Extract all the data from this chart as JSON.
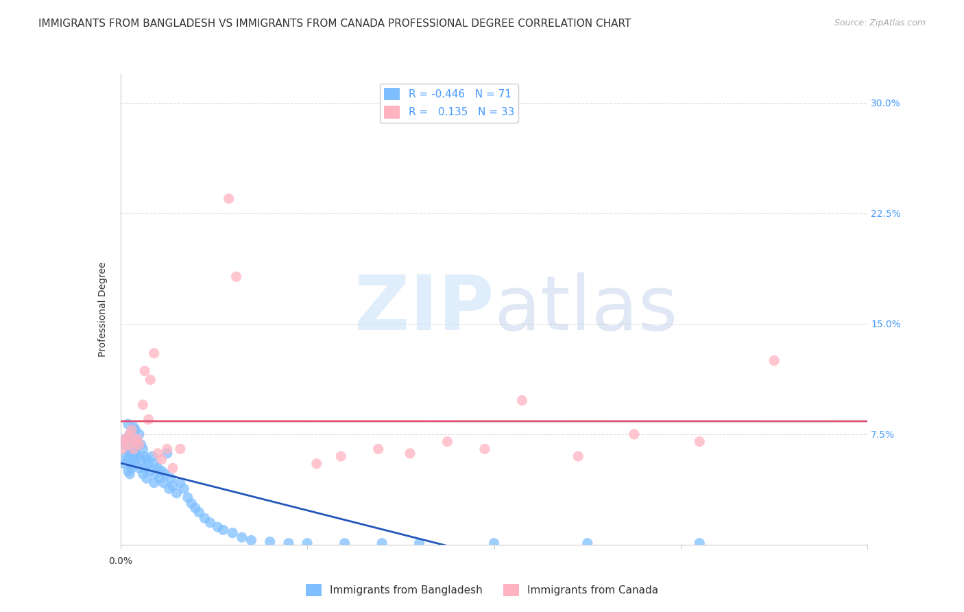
{
  "title": "IMMIGRANTS FROM BANGLADESH VS IMMIGRANTS FROM CANADA PROFESSIONAL DEGREE CORRELATION CHART",
  "source": "Source: ZipAtlas.com",
  "ylabel": "Professional Degree",
  "legend_labels": [
    "Immigrants from Bangladesh",
    "Immigrants from Canada"
  ],
  "r_bangladesh": -0.446,
  "n_bangladesh": 71,
  "r_canada": 0.135,
  "n_canada": 33,
  "xlim": [
    0.0,
    0.4
  ],
  "ylim": [
    0.0,
    0.32
  ],
  "yticks": [
    0.0,
    0.075,
    0.15,
    0.225,
    0.3
  ],
  "ytick_labels": [
    "",
    "7.5%",
    "15.0%",
    "22.5%",
    "30.0%"
  ],
  "color_bangladesh": "#7fbfff",
  "color_canada": "#ffb3c1",
  "line_color_bangladesh": "#2255bb",
  "line_color_canada": "#e05070",
  "watermark_zip": "ZIP",
  "watermark_atlas": "atlas",
  "bangladesh_x": [
    0.001,
    0.002,
    0.003,
    0.003,
    0.004,
    0.004,
    0.004,
    0.005,
    0.005,
    0.005,
    0.005,
    0.006,
    0.006,
    0.006,
    0.007,
    0.007,
    0.007,
    0.007,
    0.008,
    0.008,
    0.008,
    0.009,
    0.009,
    0.01,
    0.01,
    0.011,
    0.011,
    0.012,
    0.012,
    0.013,
    0.013,
    0.014,
    0.014,
    0.015,
    0.016,
    0.017,
    0.018,
    0.018,
    0.019,
    0.02,
    0.021,
    0.022,
    0.023,
    0.024,
    0.025,
    0.026,
    0.027,
    0.028,
    0.03,
    0.032,
    0.034,
    0.036,
    0.038,
    0.04,
    0.042,
    0.045,
    0.048,
    0.052,
    0.055,
    0.06,
    0.065,
    0.07,
    0.08,
    0.09,
    0.1,
    0.12,
    0.14,
    0.16,
    0.2,
    0.25,
    0.31
  ],
  "bangladesh_y": [
    0.068,
    0.055,
    0.072,
    0.06,
    0.082,
    0.05,
    0.058,
    0.075,
    0.065,
    0.062,
    0.048,
    0.07,
    0.055,
    0.052,
    0.08,
    0.065,
    0.062,
    0.058,
    0.078,
    0.063,
    0.055,
    0.07,
    0.06,
    0.075,
    0.052,
    0.068,
    0.058,
    0.065,
    0.048,
    0.06,
    0.052,
    0.058,
    0.045,
    0.055,
    0.05,
    0.06,
    0.042,
    0.055,
    0.048,
    0.052,
    0.045,
    0.05,
    0.042,
    0.048,
    0.062,
    0.038,
    0.045,
    0.04,
    0.035,
    0.042,
    0.038,
    0.032,
    0.028,
    0.025,
    0.022,
    0.018,
    0.015,
    0.012,
    0.01,
    0.008,
    0.005,
    0.003,
    0.002,
    0.001,
    0.001,
    0.001,
    0.001,
    0.001,
    0.001,
    0.001,
    0.001
  ],
  "canada_x": [
    0.001,
    0.002,
    0.003,
    0.004,
    0.005,
    0.006,
    0.007,
    0.008,
    0.009,
    0.01,
    0.012,
    0.013,
    0.015,
    0.016,
    0.018,
    0.02,
    0.022,
    0.025,
    0.028,
    0.032,
    0.058,
    0.062,
    0.105,
    0.118,
    0.138,
    0.155,
    0.175,
    0.195,
    0.215,
    0.245,
    0.275,
    0.31,
    0.35
  ],
  "canada_y": [
    0.065,
    0.07,
    0.072,
    0.068,
    0.075,
    0.078,
    0.065,
    0.07,
    0.072,
    0.068,
    0.095,
    0.118,
    0.085,
    0.112,
    0.13,
    0.062,
    0.058,
    0.065,
    0.052,
    0.065,
    0.235,
    0.182,
    0.055,
    0.06,
    0.065,
    0.062,
    0.07,
    0.065,
    0.098,
    0.06,
    0.075,
    0.07,
    0.125
  ],
  "background_color": "#ffffff",
  "grid_color": "#dddddd",
  "title_fontsize": 11,
  "axis_label_fontsize": 10,
  "tick_fontsize": 10,
  "legend_fontsize": 11
}
